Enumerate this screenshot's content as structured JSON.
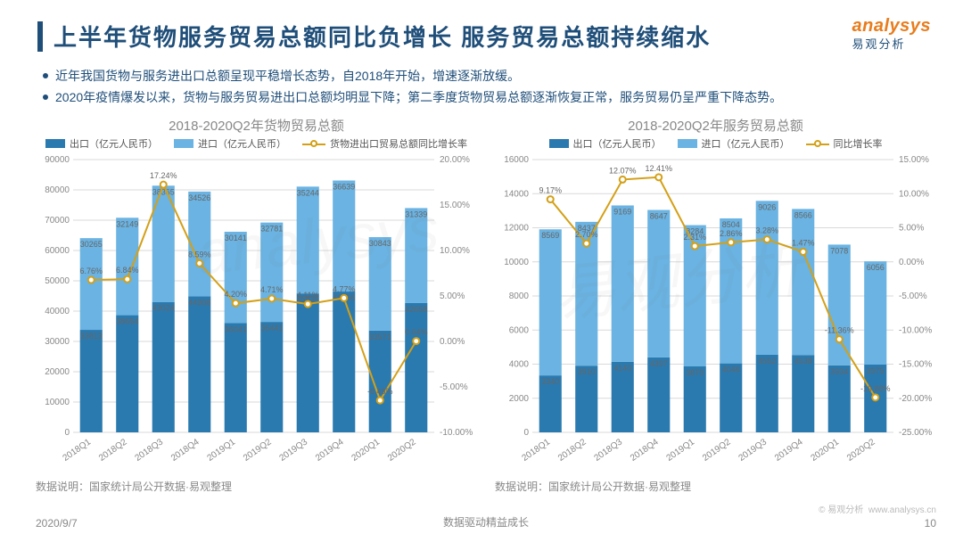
{
  "header": {
    "title": "上半年货物服务贸易总额同比负增长 服务贸易总额持续缩水",
    "logo_brand": "analysys",
    "logo_sub": "易观分析"
  },
  "bullets": [
    "近年我国货物与服务进出口总额呈现平稳增长态势，自2018年开始，增速逐渐放缓。",
    "2020年疫情爆发以来，货物与服务贸易进出口总额均明显下降；第二季度货物贸易总额逐渐恢复正常，服务贸易仍呈严重下降态势。"
  ],
  "legend_labels": {
    "export": "出口（亿元人民币）",
    "import": "进口（亿元人民币）",
    "growth_goods": "货物进出口贸易总额同比增长率",
    "growth_svc": "同比增长率"
  },
  "chart_style": {
    "bar_colors": [
      "#2a7ab0",
      "#6ab3e2"
    ],
    "line_color": "#d4a017",
    "grid_color": "#d9d9d9",
    "text_color": "#888888",
    "background": "#ffffff",
    "bar_group_width": 0.62,
    "axis_fontsize": 10,
    "title_fontsize": 15
  },
  "chart_left": {
    "title": "2018-2020Q2年货物贸易总额",
    "type": "stacked-bar-with-line",
    "categories": [
      "2018Q1",
      "2018Q2",
      "2018Q3",
      "2018Q4",
      "2019Q1",
      "2019Q2",
      "2019Q3",
      "2019Q4",
      "2020Q1",
      "2020Q2"
    ],
    "series": [
      {
        "name": "出口",
        "values": [
          33813,
          38654,
          43024,
          44908,
          36041,
          36441,
          45835,
          46456,
          33571,
          42658
        ]
      },
      {
        "name": "进口",
        "values": [
          30265,
          32149,
          38365,
          34526,
          30141,
          32781,
          35244,
          36639,
          30843,
          31339
        ]
      }
    ],
    "growth_pct": [
      6.76,
      6.84,
      17.24,
      8.59,
      4.2,
      4.71,
      4.11,
      4.77,
      -6.48,
      0.04
    ],
    "y_left": {
      "min": 0,
      "max": 90000,
      "step": 10000,
      "fmt": "int"
    },
    "y_right": {
      "min": -10.0,
      "max": 20.0,
      "step": 5.0,
      "fmt": "pct"
    },
    "source": "数据说明：国家统计局公开数据·易观整理"
  },
  "chart_right": {
    "title": "2018-2020Q2年服务贸易总额",
    "type": "stacked-bar-with-line",
    "categories": [
      "2018Q1",
      "2018Q2",
      "2018Q3",
      "2018Q4",
      "2019Q1",
      "2019Q2",
      "2019Q3",
      "2019Q4",
      "2020Q1",
      "2020Q2"
    ],
    "series": [
      {
        "name": "出口",
        "values": [
          3340,
          3910,
          4140,
          4397,
          3870,
          4046,
          4552,
          4538,
          3934,
          3975
        ]
      },
      {
        "name": "进口",
        "values": [
          8569,
          8437,
          9169,
          8647,
          8284,
          8504,
          9026,
          8566,
          7078,
          6056
        ]
      }
    ],
    "growth_pct": [
      9.17,
      2.7,
      12.07,
      12.41,
      2.31,
      2.86,
      3.28,
      1.47,
      -11.36,
      -19.88
    ],
    "y_left": {
      "min": 0,
      "max": 16000,
      "step": 2000,
      "fmt": "int"
    },
    "y_right": {
      "min": -25.0,
      "max": 15.0,
      "step": 5.0,
      "fmt": "pct"
    },
    "source": "数据说明：国家统计局公开数据·易观整理"
  },
  "footer": {
    "left": "2020/9/7",
    "mid": "数据驱动精益成长",
    "license": "© 易观分析",
    "url": "www.analysys.cn",
    "page": "10"
  },
  "watermarks": [
    "analysys",
    "易观分析"
  ]
}
